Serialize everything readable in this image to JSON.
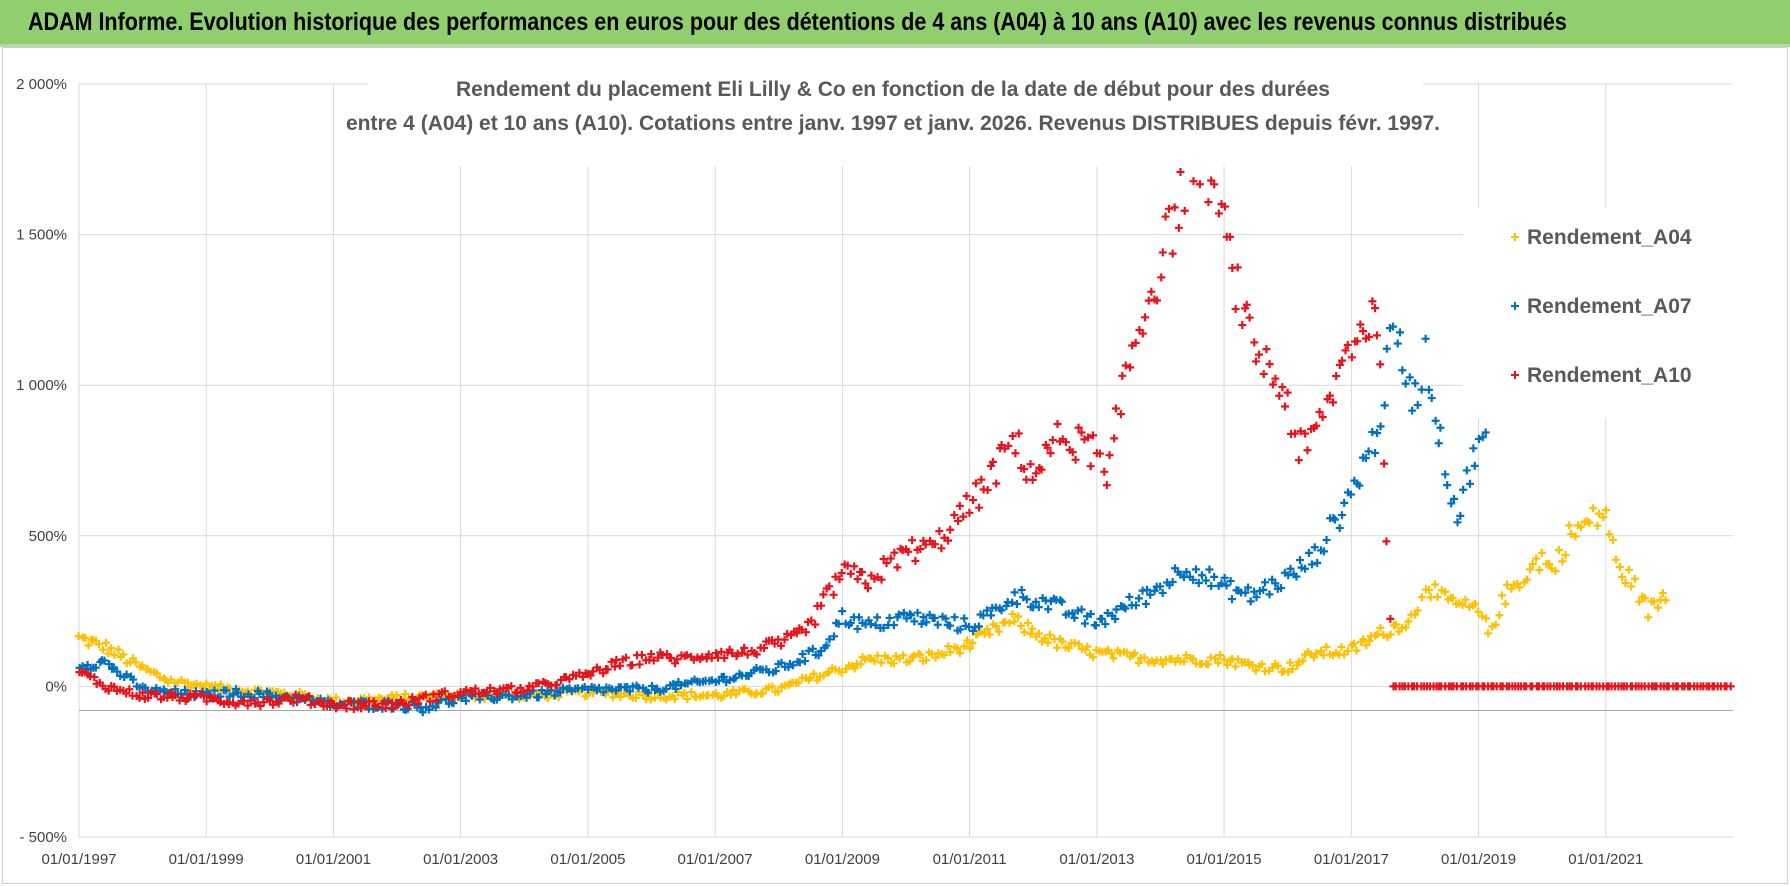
{
  "banner": {
    "title": "ADAM Informe. Evolution historique des performances en euros pour des détentions de 4 ans (A04) à 10 ans (A10) avec les revenus connus distribués"
  },
  "chart_data": {
    "type": "scatter",
    "title_line1": "Rendement du placement Eli Lilly & Co en fonction de la date de début pour des durées",
    "title_line2": "entre 4 (A04) et 10 ans (A10). Cotations entre janv. 1997 et janv. 2026. Revenus DISTRIBUES depuis févr. 1997.",
    "x_tick_labels": [
      "01/01/1997",
      "01/01/1999",
      "01/01/2001",
      "01/01/2003",
      "01/01/2005",
      "01/01/2007",
      "01/01/2009",
      "01/01/2011",
      "01/01/2013",
      "01/01/2015",
      "01/01/2017",
      "01/01/2019",
      "01/01/2021"
    ],
    "xlim": [
      "1997-01-01",
      "2023-01-01"
    ],
    "y_tick_labels": [
      "- 500%",
      "0%",
      "500%",
      "1 000%",
      "1 500%",
      "2 000%"
    ],
    "y_ticks": [
      -500,
      0,
      500,
      1000,
      1500,
      2000
    ],
    "ylim": [
      -500,
      2000
    ],
    "grid": true,
    "legend_position": "right",
    "marker": "+",
    "series": [
      {
        "name": "Rendement_A04",
        "color": "#ffc000",
        "points": [
          [
            "1997-01-01",
            160
          ],
          [
            "1997-06-01",
            130
          ],
          [
            "1998-01-01",
            60
          ],
          [
            "1998-06-01",
            20
          ],
          [
            "1999-01-01",
            0
          ],
          [
            "1999-06-01",
            -10
          ],
          [
            "2000-01-01",
            -20
          ],
          [
            "2000-06-01",
            -30
          ],
          [
            "2001-01-01",
            -50
          ],
          [
            "2002-01-01",
            -40
          ],
          [
            "2003-01-01",
            -30
          ],
          [
            "2004-01-01",
            -30
          ],
          [
            "2005-01-01",
            -20
          ],
          [
            "2006-01-01",
            -30
          ],
          [
            "2007-01-01",
            -30
          ],
          [
            "2008-01-01",
            -10
          ],
          [
            "2008-06-01",
            20
          ],
          [
            "2009-01-01",
            60
          ],
          [
            "2009-06-01",
            90
          ],
          [
            "2010-01-01",
            90
          ],
          [
            "2010-06-01",
            100
          ],
          [
            "2011-01-01",
            140
          ],
          [
            "2011-06-01",
            190
          ],
          [
            "2011-09-01",
            220
          ],
          [
            "2012-01-01",
            180
          ],
          [
            "2012-06-01",
            140
          ],
          [
            "2013-01-01",
            110
          ],
          [
            "2013-06-01",
            100
          ],
          [
            "2014-01-01",
            90
          ],
          [
            "2014-06-01",
            90
          ],
          [
            "2015-01-01",
            90
          ],
          [
            "2015-06-01",
            70
          ],
          [
            "2016-01-01",
            60
          ],
          [
            "2016-06-01",
            110
          ],
          [
            "2017-01-01",
            120
          ],
          [
            "2017-06-01",
            170
          ],
          [
            "2018-01-01",
            230
          ],
          [
            "2018-03-01",
            350
          ],
          [
            "2018-06-01",
            290
          ],
          [
            "2019-01-01",
            250
          ],
          [
            "2019-03-01",
            180
          ],
          [
            "2019-06-01",
            300
          ],
          [
            "2020-01-01",
            430
          ],
          [
            "2020-03-01",
            380
          ],
          [
            "2020-06-01",
            500
          ],
          [
            "2021-01-01",
            580
          ],
          [
            "2021-03-01",
            400
          ],
          [
            "2021-06-01",
            350
          ],
          [
            "2021-09-01",
            250
          ],
          [
            "2022-01-01",
            320
          ]
        ]
      },
      {
        "name": "Rendement_A07",
        "color": "#0070c0",
        "points": [
          [
            "1997-01-01",
            70
          ],
          [
            "1997-06-01",
            80
          ],
          [
            "1998-01-01",
            -10
          ],
          [
            "1998-06-01",
            -20
          ],
          [
            "1999-01-01",
            -30
          ],
          [
            "1999-06-01",
            -20
          ],
          [
            "2000-01-01",
            -30
          ],
          [
            "2000-06-01",
            -40
          ],
          [
            "2001-01-01",
            -60
          ],
          [
            "2002-01-01",
            -60
          ],
          [
            "2002-06-01",
            -70
          ],
          [
            "2003-01-01",
            -40
          ],
          [
            "2004-01-01",
            -30
          ],
          [
            "2005-01-01",
            -10
          ],
          [
            "2006-01-01",
            -10
          ],
          [
            "2007-01-01",
            20
          ],
          [
            "2008-01-01",
            60
          ],
          [
            "2008-09-01",
            120
          ],
          [
            "2009-01-01",
            230
          ],
          [
            "2009-06-01",
            200
          ],
          [
            "2010-01-01",
            230
          ],
          [
            "2010-06-01",
            220
          ],
          [
            "2011-01-01",
            200
          ],
          [
            "2011-06-01",
            250
          ],
          [
            "2011-09-01",
            300
          ],
          [
            "2012-01-01",
            290
          ],
          [
            "2012-06-01",
            260
          ],
          [
            "2013-01-01",
            210
          ],
          [
            "2013-06-01",
            260
          ],
          [
            "2014-01-01",
            330
          ],
          [
            "2014-06-01",
            400
          ],
          [
            "2015-01-01",
            330
          ],
          [
            "2015-06-01",
            300
          ],
          [
            "2016-01-01",
            360
          ],
          [
            "2016-06-01",
            430
          ],
          [
            "2017-01-01",
            640
          ],
          [
            "2017-06-01",
            850
          ],
          [
            "2017-09-01",
            1180
          ],
          [
            "2018-01-01",
            950
          ],
          [
            "2018-03-01",
            1100
          ],
          [
            "2018-06-01",
            800
          ],
          [
            "2018-09-01",
            560
          ],
          [
            "2019-01-01",
            830
          ],
          [
            "2019-03-01",
            780
          ]
        ]
      },
      {
        "name": "Rendement_A10",
        "color": "#e8131b",
        "points": [
          [
            "1997-01-01",
            50
          ],
          [
            "1997-06-01",
            0
          ],
          [
            "1998-01-01",
            -30
          ],
          [
            "1999-01-01",
            -40
          ],
          [
            "1999-06-01",
            -50
          ],
          [
            "2000-01-01",
            -50
          ],
          [
            "2000-06-01",
            -40
          ],
          [
            "2001-01-01",
            -60
          ],
          [
            "2002-01-01",
            -60
          ],
          [
            "2002-06-01",
            -40
          ],
          [
            "2003-01-01",
            -20
          ],
          [
            "2004-01-01",
            -10
          ],
          [
            "2005-01-01",
            40
          ],
          [
            "2005-06-01",
            70
          ],
          [
            "2006-01-01",
            100
          ],
          [
            "2006-06-01",
            90
          ],
          [
            "2007-01-01",
            110
          ],
          [
            "2007-06-01",
            110
          ],
          [
            "2008-01-01",
            140
          ],
          [
            "2008-06-01",
            180
          ],
          [
            "2009-01-01",
            380
          ],
          [
            "2009-06-01",
            350
          ],
          [
            "2010-01-01",
            450
          ],
          [
            "2010-06-01",
            460
          ],
          [
            "2011-01-01",
            600
          ],
          [
            "2011-06-01",
            720
          ],
          [
            "2011-09-01",
            820
          ],
          [
            "2012-01-01",
            700
          ],
          [
            "2012-06-01",
            830
          ],
          [
            "2013-01-01",
            780
          ],
          [
            "2013-03-01",
            650
          ],
          [
            "2013-06-01",
            1000
          ],
          [
            "2013-09-01",
            1200
          ],
          [
            "2014-01-01",
            1400
          ],
          [
            "2014-06-01",
            1700
          ],
          [
            "2014-09-01",
            1800
          ],
          [
            "2015-01-01",
            1500
          ],
          [
            "2015-06-01",
            1150
          ],
          [
            "2016-01-01",
            950
          ],
          [
            "2016-03-01",
            780
          ],
          [
            "2016-06-01",
            820
          ],
          [
            "2017-01-01",
            1150
          ],
          [
            "2017-06-01",
            1250
          ],
          [
            "2017-09-01",
            0
          ],
          [
            "2019-01-01",
            0
          ],
          [
            "2021-01-01",
            0
          ],
          [
            "2023-01-01",
            0
          ]
        ]
      }
    ]
  }
}
